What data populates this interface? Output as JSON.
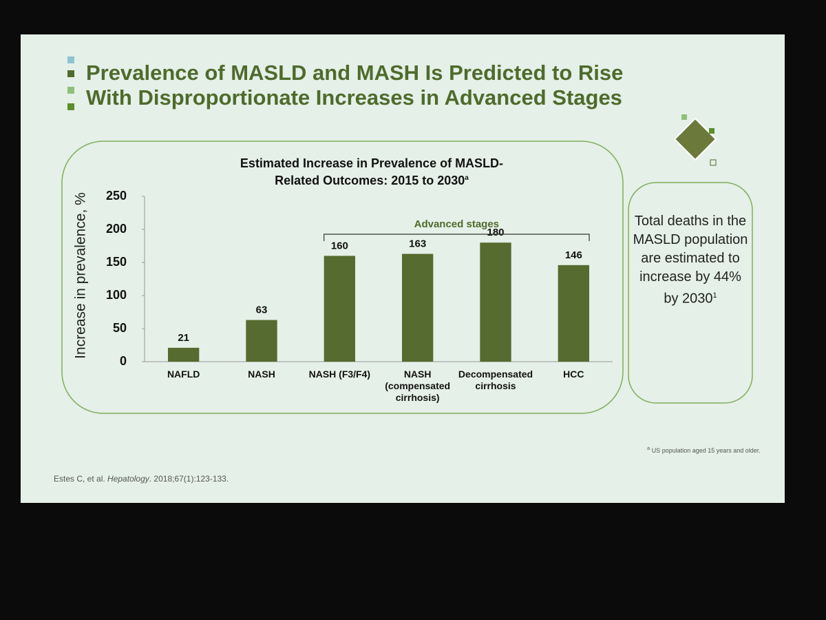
{
  "slide": {
    "heading": "Prevalence of MASLD and MASH Is Predicted to Rise With Disproportionate Increases in Advanced Stages",
    "callout": "Total deaths in the MASLD population are estimated to increase by 44% by 2030",
    "callout_ref": "1",
    "footnote_marker": "a",
    "footnote": "US population aged 15 years and older.",
    "citation_authors": "Estes C, et al.",
    "citation_journal": "Hepatology",
    "citation_details": ". 2018;67(1):123-133."
  },
  "chart_data": {
    "type": "bar",
    "title": "Estimated Increase in Prevalence of MASLD-Related Outcomes: 2015 to 2030",
    "title_note": "a",
    "y_label": "Increase in prevalence, %",
    "categories": [
      "NAFLD",
      "NASH",
      "NASH (F3/F4)",
      "NASH (compensated cirrhosis)",
      "Decompensated cirrhosis",
      "HCC"
    ],
    "values": [
      21,
      63,
      160,
      163,
      180,
      146
    ],
    "color": "#556b2f",
    "ylim": [
      0,
      250
    ],
    "yticks": [
      0,
      50,
      100,
      150,
      200,
      250
    ],
    "grid": false,
    "annotation": "Advanced stages"
  }
}
